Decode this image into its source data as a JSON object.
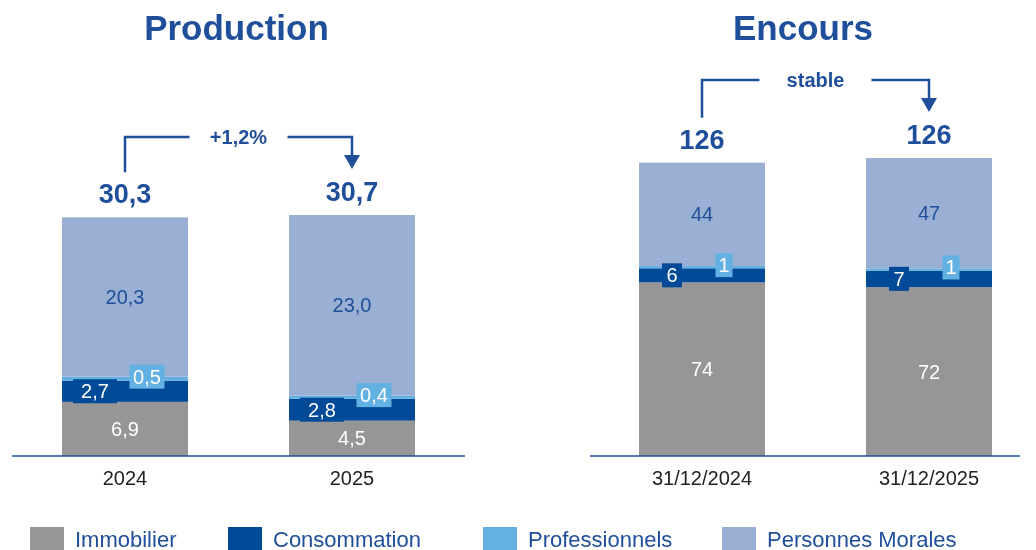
{
  "chart_data": [
    {
      "type": "bar",
      "title": "Production",
      "stacked": true,
      "categories": [
        "2024",
        "2025"
      ],
      "series": [
        {
          "name": "Immobilier",
          "color": "#969696",
          "values": [
            6.9,
            4.5
          ],
          "value_labels": [
            "6,9",
            "4,5"
          ]
        },
        {
          "name": "Consommation",
          "color": "#004a98",
          "values": [
            2.7,
            2.8
          ],
          "value_labels": [
            "2,7",
            "2,8"
          ]
        },
        {
          "name": "Professionnels",
          "color": "#63b0e3",
          "values": [
            0.5,
            0.4
          ],
          "value_labels": [
            "0,5",
            "0,4"
          ]
        },
        {
          "name": "Personnes Morales",
          "color": "#99afd3",
          "values": [
            20.3,
            23.0
          ],
          "value_labels": [
            "20,3",
            "23,0"
          ]
        }
      ],
      "totals": [
        "30,3",
        "30,7"
      ],
      "annotations": [
        "+1,2%"
      ],
      "legend": "bottom"
    },
    {
      "type": "bar",
      "title": "Encours",
      "stacked": true,
      "categories": [
        "31/12/2024",
        "31/12/2025"
      ],
      "series": [
        {
          "color": "#969696",
          "values": [
            74,
            72
          ],
          "value_labels": [
            "74",
            "72"
          ]
        },
        {
          "color": "#004a98",
          "values": [
            6,
            7
          ],
          "value_labels": [
            "6",
            "7"
          ]
        },
        {
          "color": "#63b0e3",
          "values": [
            1,
            1
          ],
          "value_labels": [
            "1",
            "1"
          ]
        },
        {
          "color": "#99afd3",
          "values": [
            44,
            47
          ],
          "value_labels": [
            "44",
            "47"
          ]
        }
      ],
      "totals": [
        "126",
        "126"
      ],
      "annotations": [
        "stable"
      ]
    }
  ]
}
